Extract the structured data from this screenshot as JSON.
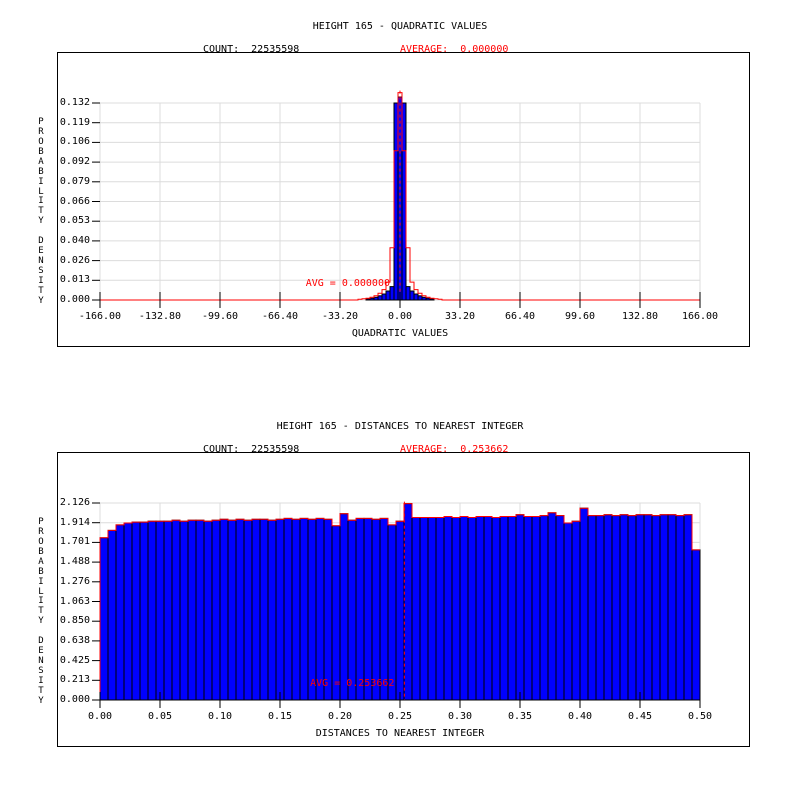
{
  "colors": {
    "bar_fill": "#0000ff",
    "bar_outline": "#000000",
    "curve": "#ff0000",
    "average_marker": "#ff0000",
    "grid": "#dcdcdc",
    "frame": "#000000",
    "text": "#000000"
  },
  "chart_data": [
    {
      "type": "bar",
      "title": "HEIGHT 165 - QUADRATIC VALUES",
      "count_label": "COUNT:  22535598",
      "average_label": "AVERAGE:  0.000000",
      "avg_annotation": "AVG = 0.000000",
      "xlabel": "QUADRATIC VALUES",
      "ylabel": "PROBABILITY DENSITY",
      "x_tick_labels": [
        "-166.00",
        "-132.80",
        "-99.60",
        "-66.40",
        "-33.20",
        "0.00",
        "33.20",
        "66.40",
        "99.60",
        "132.80",
        "166.00"
      ],
      "y_tick_labels": [
        "0.132",
        "0.119",
        "0.106",
        "0.092",
        "0.079",
        "0.066",
        "0.053",
        "0.040",
        "0.026",
        "0.013",
        "0.000"
      ],
      "xlim": [
        -166,
        166
      ],
      "ylim": [
        0,
        0.132
      ],
      "grid": true,
      "legend_position": "none",
      "count": 22535598,
      "average": 0.0,
      "bin_width": 2.213,
      "bins_x": [
        -22.13,
        -19.92,
        -17.71,
        -15.49,
        -13.28,
        -11.07,
        -8.85,
        -6.64,
        -4.43,
        -2.21,
        0,
        2.21,
        4.43,
        6.64,
        8.85,
        11.07,
        13.28,
        15.49,
        17.71,
        19.92,
        22.13
      ],
      "bar_values": [
        0.0003,
        0.0005,
        0.0008,
        0.0012,
        0.0018,
        0.0028,
        0.004,
        0.006,
        0.009,
        0.132,
        0.136,
        0.132,
        0.009,
        0.006,
        0.004,
        0.0028,
        0.0018,
        0.0012,
        0.0008,
        0.0005,
        0.0003
      ],
      "curve_values": [
        0.0005,
        0.0008,
        0.0012,
        0.0018,
        0.0028,
        0.0045,
        0.007,
        0.012,
        0.035,
        0.1,
        0.139,
        0.1,
        0.035,
        0.012,
        0.007,
        0.0045,
        0.0028,
        0.0018,
        0.0012,
        0.0008,
        0.0005
      ],
      "note": "sharp spike at 0; density is 0 outside listed bins; red step curve overlays blue histogram; red dashed vertical line at average"
    },
    {
      "type": "bar",
      "title": "HEIGHT 165 - DISTANCES TO NEAREST INTEGER",
      "count_label": "COUNT:  22535598",
      "average_label": "AVERAGE:  0.253662",
      "avg_annotation": "AVG = 0.253662",
      "xlabel": "DISTANCES TO NEAREST INTEGER",
      "ylabel": "PROBABILITY DENSITY",
      "x_tick_labels": [
        "0.00",
        "0.05",
        "0.10",
        "0.15",
        "0.20",
        "0.25",
        "0.30",
        "0.35",
        "0.40",
        "0.45",
        "0.50"
      ],
      "y_tick_labels": [
        "2.126",
        "1.914",
        "1.701",
        "1.488",
        "1.276",
        "1.063",
        "0.850",
        "0.638",
        "0.425",
        "0.213",
        "0.000"
      ],
      "xlim": [
        0,
        0.5
      ],
      "ylim": [
        0,
        2.126
      ],
      "grid": true,
      "legend_position": "none",
      "count": 22535598,
      "average": 0.253662,
      "bin_width": 0.0066667,
      "x_start": 0.0,
      "bar_values": [
        1.75,
        1.83,
        1.89,
        1.91,
        1.92,
        1.92,
        1.93,
        1.93,
        1.93,
        1.94,
        1.93,
        1.94,
        1.94,
        1.93,
        1.94,
        1.95,
        1.94,
        1.95,
        1.94,
        1.95,
        1.95,
        1.94,
        1.95,
        1.96,
        1.95,
        1.96,
        1.95,
        1.96,
        1.95,
        1.88,
        2.01,
        1.94,
        1.96,
        1.96,
        1.95,
        1.96,
        1.89,
        1.93,
        2.12,
        1.97,
        1.97,
        1.97,
        1.97,
        1.98,
        1.97,
        1.98,
        1.97,
        1.98,
        1.98,
        1.97,
        1.98,
        1.98,
        2.0,
        1.98,
        1.98,
        1.99,
        2.02,
        1.99,
        1.91,
        1.93,
        2.07,
        1.99,
        1.99,
        2.0,
        1.99,
        2.0,
        1.99,
        2.0,
        2.0,
        1.99,
        2.0,
        2.0,
        1.99,
        2.0,
        1.62
      ],
      "note": "near-uniform density ~1.95 with dips/spikes near 0.20, 0.25, 0.40; last bin at 0.5 drops; red step curve traces bar tops; red dashed vertical line at average"
    }
  ]
}
